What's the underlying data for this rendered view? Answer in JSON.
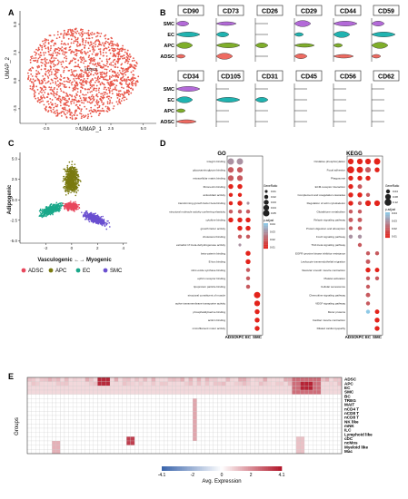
{
  "panels": {
    "A": {
      "label": "A",
      "xlabel": "UMAP_1",
      "ylabel": "UMAP_2",
      "cluster_label": "ADSCs",
      "point_color": "#e8574a",
      "xticks": [
        "-2.5",
        "0.0",
        "2.5",
        "5.0"
      ],
      "yticks": [
        "5.0",
        "2.5",
        "0.0",
        "-2.5"
      ]
    },
    "B": {
      "label": "B",
      "rows": [
        "SMC",
        "EC",
        "APC",
        "ADSC"
      ],
      "row_colors": {
        "SMC": "#b36ad8",
        "EC": "#20b3b0",
        "APC": "#7fae2a",
        "ADSC": "#ee6b62"
      },
      "markers_top": [
        "CD90",
        "CD73",
        "CD26",
        "CD29",
        "CD44",
        "CD59"
      ],
      "markers_bottom": [
        "CD34",
        "CD105",
        "CD31",
        "CD45",
        "CD56",
        "CD62"
      ]
    },
    "C": {
      "label": "C",
      "xlabel": "Vasculogenic ←→ Myogenic",
      "ylabel": "Adipogenic",
      "xticks": [
        "-2",
        "0",
        "2",
        "4"
      ],
      "yticks": [
        "5.0",
        "2.5",
        "0.0",
        "-2.5",
        "-5.0"
      ],
      "legend": [
        {
          "name": "ADSC",
          "color": "#e8475c"
        },
        {
          "name": "APC",
          "color": "#7a7a10"
        },
        {
          "name": "EC",
          "color": "#1aa88a"
        },
        {
          "name": "SMC",
          "color": "#6a4fd0"
        }
      ]
    },
    "D": {
      "label": "D",
      "go_title": "GO",
      "kegg_title": "KEGG",
      "columns": [
        "ADSC",
        "APC",
        "EC",
        "SMC"
      ],
      "go_terms": [
        "integrin binding",
        "glycosaminoglycan binding",
        "extracellular matrix binding",
        "fibronectin binding",
        "antioxidant activity",
        "transforming growth factor beta binding",
        "structural molecule activity conferring elasticity",
        "cytokine binding",
        "growth factor activity",
        "cholesterol binding",
        "estradiol 17-beta-dehydrogenase activity",
        "beta-catenin binding",
        "E-box binding",
        "nitric-oxide synthase binding",
        "ephrin receptor binding",
        "lipoprotein particle binding",
        "structural constituent of muscle",
        "active transmembrane transporter activity",
        "phosphatidylserine binding",
        "actinin binding",
        "microfilament motor activity"
      ],
      "kegg_terms": [
        "Oxidative phosphorylation",
        "Focal adhesion",
        "Phagosome",
        "ECM-receptor interaction",
        "Complement and coagulation cascades",
        "Regulation of actin cytoskeleton",
        "Glutathione metabolism",
        "Relaxin signaling pathway",
        "Protein digestion and absorption",
        "FoxO signaling pathway",
        "TGF-beta signaling pathway",
        "EGFR tyrosine kinase inhibitor resistance",
        "Leukocyte transendothelial migration",
        "Vascular smooth muscle contraction",
        "Platelet activation",
        "Cellular senescence",
        "Chemokine signaling pathway",
        "VEGF signaling pathway",
        "Motor proteins",
        "Cardiac muscle contraction",
        "Dilated cardiomyopathy"
      ],
      "go_legend": {
        "size_title": "GeneRatio",
        "size_values": [
          "0.01",
          "0.02",
          "0.03",
          "0.04",
          "0.05"
        ],
        "color_title": "p.adjust",
        "color_values": [
          "0.04",
          "0.03",
          "0.02",
          "0.01"
        ]
      },
      "kegg_legend": {
        "size_title": "GeneRatio",
        "size_values": [
          "0.04",
          "0.08",
          "0.12"
        ],
        "color_title": "p.adjust",
        "color_values": [
          "0.04",
          "0.03",
          "0.02",
          "0.01"
        ]
      },
      "dot_high": "#e3231b",
      "dot_low": "#8ec9e6"
    },
    "E": {
      "label": "E",
      "ylabel": "Groups",
      "rows": [
        "ADSC",
        "APC",
        "EC",
        "SMC",
        "BC",
        "TREG",
        "MAIT",
        "nCD4 T",
        "nCD8 T",
        "nCD8 T",
        "NK like",
        "mNK",
        "ILC",
        "Lymphoid like",
        "cDC",
        "ncMos",
        "Myeloid like",
        "Mac"
      ],
      "colorbar_title": "Avg. Expression",
      "colorbar_ticks": [
        "-4.1",
        "-2",
        "0",
        "2",
        "4.1"
      ],
      "low_color": "#2166ac",
      "high_color": "#b2182b"
    }
  },
  "chart_data": [
    {
      "type": "scatter",
      "panel": "A",
      "xlabel": "UMAP_1",
      "ylabel": "UMAP_2",
      "xlim": [
        -4.5,
        6
      ],
      "ylim": [
        -3.8,
        6.2
      ],
      "series": [
        {
          "name": "ADSCs",
          "cloud": {
            "cx": 0.4,
            "cy": 0.6,
            "rx": 4.3,
            "ry": 4.0,
            "n": 1500
          }
        }
      ]
    },
    {
      "type": "scatter",
      "panel": "C",
      "xlabel": "Vasculogenic ←→ Myogenic",
      "ylabel": "Adipogenic",
      "xlim": [
        -4,
        4.3
      ],
      "ylim": [
        -5.3,
        5.8
      ],
      "series": [
        {
          "name": "APC",
          "cloud": {
            "cx": 0.0,
            "cy": 2.5,
            "rx": 0.9,
            "ry": 2.7,
            "n": 700
          }
        },
        {
          "name": "EC",
          "cloud": {
            "cx": -1.6,
            "cy": -1.2,
            "rx": 1.5,
            "ry": 1.0,
            "n": 450
          }
        },
        {
          "name": "SMC",
          "cloud": {
            "cx": 1.8,
            "cy": -2.3,
            "rx": 1.4,
            "ry": 0.9,
            "n": 450
          }
        },
        {
          "name": "ADSC",
          "cloud": {
            "cx": 0.0,
            "cy": -0.8,
            "rx": 0.9,
            "ry": 0.8,
            "n": 350
          }
        }
      ]
    },
    {
      "type": "heatmap",
      "panel": "D-GO",
      "columns": [
        "ADSC",
        "APC",
        "EC",
        "SMC"
      ],
      "cells": [
        [
          0.05,
          0.03,
          0.05,
          0.03,
          0,
          0,
          0,
          0
        ],
        [
          0.04,
          0.02,
          0.04,
          0.02,
          0,
          0,
          0,
          0
        ],
        [
          0.04,
          0.02,
          0.04,
          0.02,
          0,
          0,
          0,
          0
        ],
        [
          0.03,
          0.01,
          0.03,
          0.01,
          0,
          0,
          0,
          0
        ],
        [
          0.02,
          0.01,
          0.02,
          0.01,
          0,
          0,
          0,
          0
        ],
        [
          0.02,
          0.01,
          0.03,
          0.01,
          0.01,
          0.03,
          0,
          0
        ],
        [
          0.02,
          0.02,
          0.02,
          0.02,
          0.02,
          0.02,
          0,
          0
        ],
        [
          0.03,
          0.01,
          0.03,
          0.01,
          0.03,
          0.01,
          0,
          0
        ],
        [
          0,
          0,
          0.03,
          0.01,
          0.03,
          0.01,
          0,
          0
        ],
        [
          0,
          0,
          0.02,
          0.02,
          0.02,
          0.02,
          0,
          0
        ],
        [
          0,
          0,
          0.01,
          0.03,
          0,
          0,
          0,
          0
        ],
        [
          0,
          0,
          0,
          0,
          0.03,
          0.01,
          0,
          0
        ],
        [
          0,
          0,
          0,
          0,
          0.03,
          0.01,
          0,
          0
        ],
        [
          0,
          0,
          0,
          0,
          0.02,
          0.02,
          0,
          0
        ],
        [
          0,
          0,
          0,
          0,
          0.02,
          0.02,
          0,
          0
        ],
        [
          0,
          0,
          0,
          0,
          0.02,
          0.02,
          0,
          0
        ],
        [
          0,
          0,
          0,
          0,
          0,
          0,
          0.05,
          0.01
        ],
        [
          0,
          0,
          0,
          0,
          0,
          0,
          0.04,
          0.01
        ],
        [
          0,
          0,
          0,
          0,
          0,
          0,
          0.03,
          0.01
        ],
        [
          0,
          0,
          0,
          0,
          0,
          0,
          0.03,
          0.01
        ],
        [
          0,
          0,
          0,
          0,
          0,
          0,
          0.03,
          0.01
        ]
      ],
      "cell_format": "per row: [GeneRatio, p.adjust] for ADSC, APC, EC, SMC; 0 = no dot"
    },
    {
      "type": "heatmap",
      "panel": "D-KEGG",
      "columns": [
        "ADSC",
        "APC",
        "EC",
        "SMC"
      ],
      "cells": [
        [
          0.08,
          0.01,
          0.08,
          0.01,
          0.08,
          0.01,
          0.1,
          0.01
        ],
        [
          0.12,
          0.01,
          0.1,
          0.01,
          0.08,
          0.02,
          0.06,
          0.01
        ],
        [
          0.06,
          0.01,
          0.06,
          0.01,
          0.06,
          0.01,
          0,
          0
        ],
        [
          0.06,
          0.01,
          0.05,
          0.02,
          0,
          0,
          0,
          0
        ],
        [
          0.06,
          0.01,
          0.06,
          0.01,
          0.04,
          0.02,
          0,
          0
        ],
        [
          0.06,
          0.01,
          0.04,
          0.02,
          0.08,
          0.01,
          0.08,
          0.01
        ],
        [
          0.04,
          0.02,
          0.04,
          0.02,
          0,
          0,
          0,
          0
        ],
        [
          0.05,
          0.02,
          0.05,
          0.02,
          0,
          0,
          0,
          0
        ],
        [
          0.04,
          0.02,
          0.04,
          0.02,
          0,
          0,
          0,
          0
        ],
        [
          0.04,
          0.03,
          0.04,
          0.03,
          0,
          0,
          0,
          0
        ],
        [
          0,
          0,
          0.04,
          0.02,
          0,
          0,
          0,
          0
        ],
        [
          0,
          0,
          0,
          0,
          0.04,
          0.02,
          0.04,
          0.02
        ],
        [
          0,
          0,
          0,
          0,
          0.05,
          0.02,
          0,
          0
        ],
        [
          0,
          0,
          0,
          0,
          0.06,
          0.01,
          0.05,
          0.01
        ],
        [
          0,
          0,
          0,
          0,
          0.04,
          0.02,
          0.04,
          0.02
        ],
        [
          0,
          0,
          0,
          0,
          0.04,
          0.02,
          0,
          0
        ],
        [
          0,
          0,
          0,
          0,
          0.05,
          0.02,
          0,
          0
        ],
        [
          0,
          0,
          0,
          0,
          0.04,
          0.02,
          0,
          0
        ],
        [
          0,
          0,
          0,
          0,
          0.04,
          0.04,
          0.05,
          0.01
        ],
        [
          0,
          0,
          0,
          0,
          0,
          0,
          0.06,
          0.01
        ],
        [
          0,
          0,
          0,
          0,
          0,
          0,
          0.06,
          0.01
        ]
      ],
      "cell_format": "per row: [GeneRatio, p.adjust] for ADSC, APC, EC, SMC; 0 = no dot"
    },
    {
      "type": "heatmap",
      "panel": "E",
      "rows": [
        "ADSC",
        "APC",
        "EC",
        "SMC",
        "BC",
        "TREG",
        "MAIT",
        "nCD4 T",
        "nCD8 T",
        "nCD8 T",
        "NK like",
        "mNK",
        "ILC",
        "Lymphoid like",
        "cDC",
        "ncMos",
        "Myeloid like",
        "Mac"
      ],
      "n_columns": 76,
      "value_range": [
        -4.1,
        4.1
      ],
      "highlights": [
        {
          "rows": [
            0,
            1,
            2,
            3
          ],
          "columns": "0-75",
          "value": 0.7
        },
        {
          "rows": [
            0,
            1
          ],
          "columns": "17-19",
          "value": 3.8
        },
        {
          "rows": [
            0,
            1,
            2,
            3
          ],
          "columns": "64-70",
          "value": 2.6
        },
        {
          "rows": [
            1,
            2
          ],
          "columns": "66-68",
          "value": 3.9
        },
        {
          "rows": "5-14",
          "columns": "40",
          "value": 1.6
        },
        {
          "rows": [
            14,
            15
          ],
          "columns": "24-25",
          "value": 3.4
        },
        {
          "rows": [
            15,
            16,
            17
          ],
          "columns": "6-7",
          "value": 1.4
        },
        {
          "rows": "14-17",
          "columns": "65-66",
          "value": 1.1
        }
      ]
    }
  ]
}
